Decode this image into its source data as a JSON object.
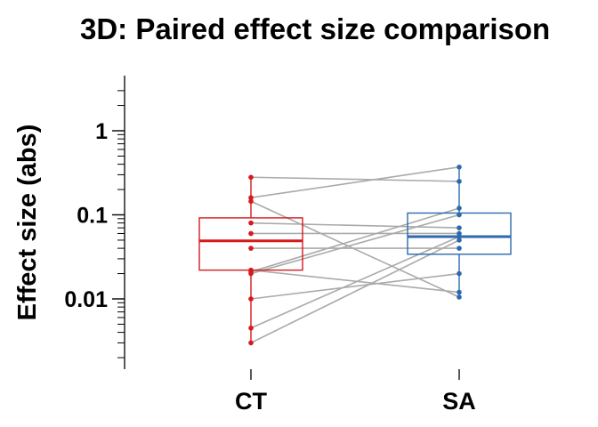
{
  "chart_data": {
    "type": "box",
    "title": "3D: Paired effect size comparison",
    "ylabel": "Effect size (abs)",
    "xlabel": "",
    "yscale": "log",
    "ylim": [
      0.0007,
      4.5
    ],
    "yticks": [
      {
        "value": 1,
        "label": "1"
      },
      {
        "value": 0.1,
        "label": "0.1"
      },
      {
        "value": 0.01,
        "label": "0.01"
      }
    ],
    "categories": [
      "CT",
      "SA"
    ],
    "colors": {
      "CT": "#d7191c",
      "SA": "#2c6aad",
      "pair_line": "#aaaaaa"
    },
    "boxes": [
      {
        "category": "CT",
        "q1": 0.022,
        "median": 0.049,
        "q3": 0.092,
        "whisker_low": 0.003,
        "whisker_high": 0.28
      },
      {
        "category": "SA",
        "q1": 0.034,
        "median": 0.055,
        "q3": 0.105,
        "whisker_low": 0.0105,
        "whisker_high": 0.37
      }
    ],
    "pairs": [
      {
        "CT": 0.28,
        "SA": 0.25
      },
      {
        "CT": 0.16,
        "SA": 0.37
      },
      {
        "CT": 0.145,
        "SA": 0.0105
      },
      {
        "CT": 0.08,
        "SA": 0.07
      },
      {
        "CT": 0.06,
        "SA": 0.06
      },
      {
        "CT": 0.04,
        "SA": 0.04
      },
      {
        "CT": 0.022,
        "SA": 0.012
      },
      {
        "CT": 0.021,
        "SA": 0.12
      },
      {
        "CT": 0.01,
        "SA": 0.02
      },
      {
        "CT": 0.003,
        "SA": 0.05
      },
      {
        "CT": 0.02,
        "SA": 0.1
      },
      {
        "CT": 0.0045,
        "SA": 0.055
      }
    ]
  }
}
